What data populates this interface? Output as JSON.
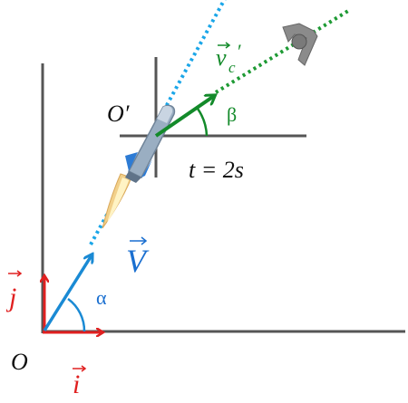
{
  "labels": {
    "origin": "O",
    "origin_prime": "O′",
    "unit_i": "i",
    "unit_j": "j",
    "velocity_V": "V",
    "velocity_vc": "v",
    "velocity_vc_sub": "c",
    "velocity_vc_prime": "′",
    "angle_alpha": "α",
    "angle_beta": "β",
    "time_label": "t = 2s"
  },
  "colors": {
    "axis": "#555555",
    "unit_vectors": "#e02020",
    "velocity_V": "#1a8ad4",
    "velocity_vc": "#138a2a",
    "rocket_body": "#8fa3b8",
    "flame": "#f2d08a",
    "fragment": "#888888"
  }
}
